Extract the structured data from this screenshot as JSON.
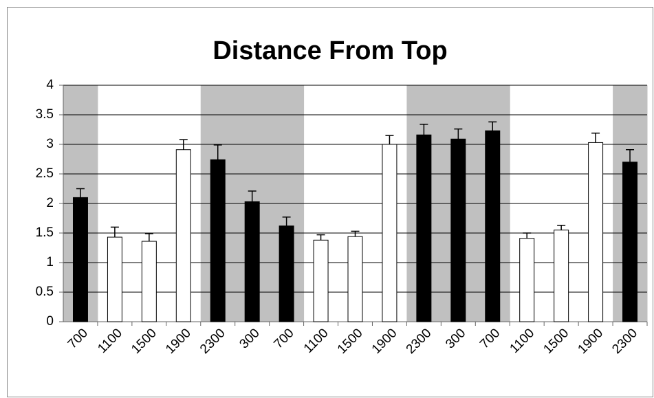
{
  "chart_data": {
    "type": "bar",
    "title": "Distance From Top",
    "categories": [
      "700",
      "1100",
      "1500",
      "1900",
      "2300",
      "300",
      "700",
      "1100",
      "1500",
      "1900",
      "2300",
      "300",
      "700",
      "1100",
      "1500",
      "1900",
      "2300"
    ],
    "values": [
      2.1,
      1.43,
      1.36,
      2.91,
      2.74,
      2.03,
      1.62,
      1.38,
      1.44,
      3.0,
      3.16,
      3.09,
      3.23,
      1.41,
      1.55,
      3.03,
      2.7
    ],
    "errors": [
      0.15,
      0.17,
      0.13,
      0.17,
      0.25,
      0.18,
      0.15,
      0.09,
      0.09,
      0.15,
      0.18,
      0.17,
      0.15,
      0.09,
      0.08,
      0.16,
      0.21
    ],
    "colors": [
      "#000000",
      "#ffffff",
      "#ffffff",
      "#ffffff",
      "#000000",
      "#000000",
      "#000000",
      "#ffffff",
      "#ffffff",
      "#ffffff",
      "#000000",
      "#000000",
      "#000000",
      "#ffffff",
      "#ffffff",
      "#ffffff",
      "#000000"
    ],
    "shaded": [
      true,
      false,
      false,
      false,
      true,
      true,
      true,
      false,
      false,
      false,
      true,
      true,
      true,
      false,
      false,
      false,
      true
    ],
    "band_color": "#c0c0c0",
    "ylim": [
      0,
      4
    ],
    "yticks": [
      0,
      0.5,
      1,
      1.5,
      2,
      2.5,
      3,
      3.5,
      4
    ],
    "grid": true
  }
}
